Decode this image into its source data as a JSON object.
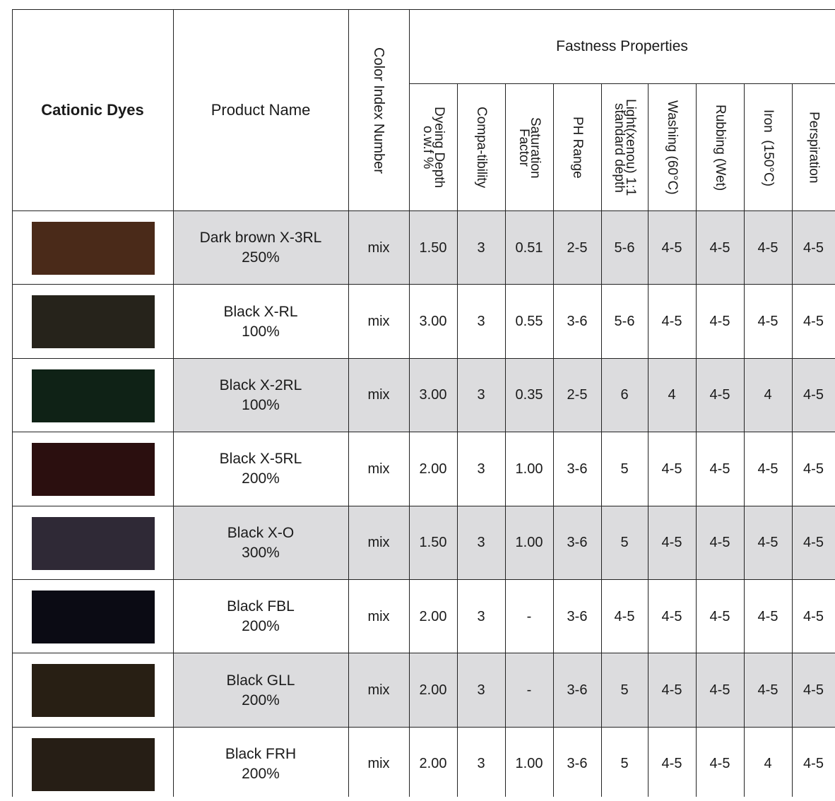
{
  "header": {
    "cationic_dyes": "Cationic Dyes",
    "product_name": "Product Name",
    "color_index_number": "Color Index Number",
    "fastness_properties": "Fastness Properties",
    "columns": [
      "Dyeing Depth\no.w.f %",
      "Compa-tibility",
      "Saturation\nFactor",
      "PH Range",
      "Light(xenou) 1:1\nstandard depth",
      "Washing (60°C)",
      "Rubbing (Wet)",
      "Iron  (150°C)",
      "Perspiration"
    ]
  },
  "rows": [
    {
      "swatch": "#4a2a19",
      "name": "Dark brown X-3RL\n250%",
      "cin": "mix",
      "values": [
        "1.50",
        "3",
        "0.51",
        "2-5",
        "5-6",
        "4-5",
        "4-5",
        "4-5",
        "4-5"
      ]
    },
    {
      "swatch": "#26231b",
      "name": "Black X-RL\n100%",
      "cin": "mix",
      "values": [
        "3.00",
        "3",
        "0.55",
        "3-6",
        "5-6",
        "4-5",
        "4-5",
        "4-5",
        "4-5"
      ]
    },
    {
      "swatch": "#0f2216",
      "name": "Black X-2RL\n100%",
      "cin": "mix",
      "values": [
        "3.00",
        "3",
        "0.35",
        "2-5",
        "6",
        "4",
        "4-5",
        "4",
        "4-5"
      ]
    },
    {
      "swatch": "#2b0f0f",
      "name": "Black X-5RL\n200%",
      "cin": "mix",
      "values": [
        "2.00",
        "3",
        "1.00",
        "3-6",
        "5",
        "4-5",
        "4-5",
        "4-5",
        "4-5"
      ]
    },
    {
      "swatch": "#2f2936",
      "name": "Black X-O\n300%",
      "cin": "mix",
      "values": [
        "1.50",
        "3",
        "1.00",
        "3-6",
        "5",
        "4-5",
        "4-5",
        "4-5",
        "4-5"
      ]
    },
    {
      "swatch": "#0b0b14",
      "name": "Black FBL\n200%",
      "cin": "mix",
      "values": [
        "2.00",
        "3",
        "-",
        "3-6",
        "4-5",
        "4-5",
        "4-5",
        "4-5",
        "4-5"
      ]
    },
    {
      "swatch": "#281f14",
      "name": "Black GLL\n200%",
      "cin": "mix",
      "values": [
        "2.00",
        "3",
        "-",
        "3-6",
        "5",
        "4-5",
        "4-5",
        "4-5",
        "4-5"
      ]
    },
    {
      "swatch": "#261e15",
      "name": "Black FRH\n200%",
      "cin": "mix",
      "values": [
        "2.00",
        "3",
        "1.00",
        "3-6",
        "5",
        "4-5",
        "4-5",
        "4",
        "4-5"
      ]
    }
  ]
}
